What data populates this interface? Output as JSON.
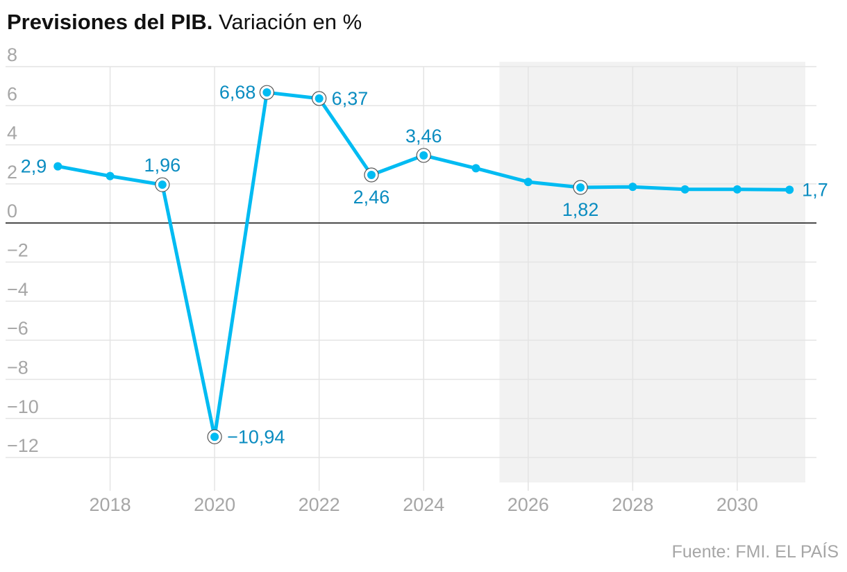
{
  "title": "Previsiones del PIB.",
  "subtitle": "Variación en %",
  "source": "Fuente: FMI. EL PAÍS",
  "colors": {
    "line": "#00bbf2",
    "label": "#0a8cc0",
    "forecast_band": "#f2f2f2",
    "grid": "#e4e4e4",
    "zero_line": "#111111",
    "tick": "#a6a6a6"
  },
  "chart_data": {
    "type": "line",
    "x": [
      2017,
      2018,
      2019,
      2020,
      2021,
      2022,
      2023,
      2024,
      2025,
      2026,
      2027,
      2028,
      2029,
      2030,
      2031
    ],
    "series": [
      {
        "values": [
          2.9,
          2.4,
          1.96,
          -10.94,
          6.68,
          6.37,
          2.46,
          3.46,
          2.8,
          2.1,
          1.82,
          1.85,
          1.72,
          1.72,
          1.7
        ]
      }
    ],
    "labels": [
      {
        "x": 2017,
        "text": "2,9",
        "position": "left",
        "ring": false
      },
      {
        "x": 2019,
        "text": "1,96",
        "position": "above",
        "ring": true
      },
      {
        "x": 2020,
        "text": "−10,94",
        "position": "right",
        "ring": true
      },
      {
        "x": 2021,
        "text": "6,68",
        "position": "left",
        "ring": true
      },
      {
        "x": 2022,
        "text": "6,37",
        "position": "right",
        "ring": true
      },
      {
        "x": 2023,
        "text": "2,46",
        "position": "below",
        "ring": true
      },
      {
        "x": 2024,
        "text": "3,46",
        "position": "above",
        "ring": true
      },
      {
        "x": 2027,
        "text": "1,82",
        "position": "below",
        "ring": true
      },
      {
        "x": 2031,
        "text": "1,7",
        "position": "right",
        "ring": false
      }
    ],
    "x_ticks": [
      2018,
      2020,
      2022,
      2024,
      2026,
      2028,
      2030
    ],
    "x_tick_labels": [
      "2018",
      "2020",
      "2022",
      "2024",
      "2026",
      "2028",
      "2030"
    ],
    "y_ticks": [
      8,
      6,
      4,
      2,
      0,
      -2,
      -4,
      -6,
      -8,
      -10,
      -12
    ],
    "y_tick_labels": [
      "8",
      "6",
      "4",
      "2",
      "0",
      "−2",
      "−4",
      "−6",
      "−8",
      "−10",
      "−12"
    ],
    "xlim": [
      2016.0,
      2031.25
    ],
    "ylim": [
      -12.6,
      8
    ],
    "forecast_start": 2025.45,
    "grid": true
  }
}
